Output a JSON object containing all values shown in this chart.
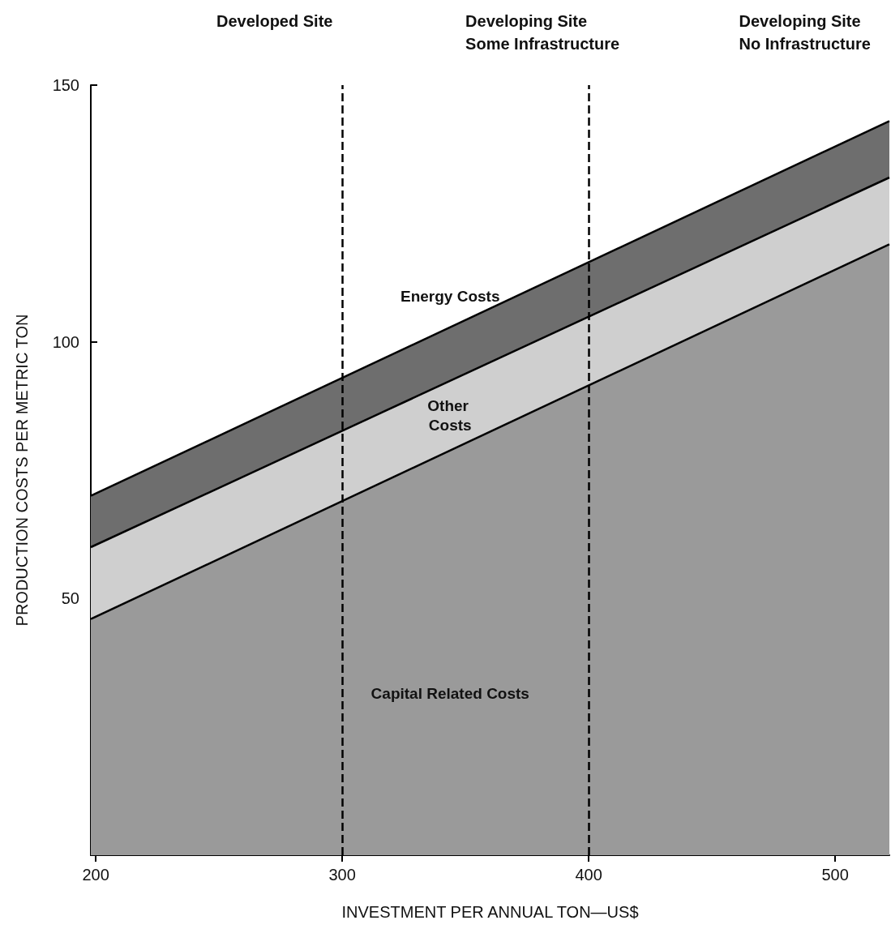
{
  "chart_data": {
    "type": "area",
    "stacked": true,
    "xlabel": "INVESTMENT PER ANNUAL TON—US$",
    "ylabel": "PRODUCTION COSTS PER METRIC TON",
    "x": [
      198,
      522
    ],
    "series": [
      {
        "name": "Capital Related Costs",
        "color": "#9a9a9a",
        "values": [
          46,
          119
        ]
      },
      {
        "name": "Other Costs",
        "color": "#cfcfcf",
        "values": [
          14,
          13
        ]
      },
      {
        "name": "Energy Costs",
        "color": "#6e6e6e",
        "values": [
          10,
          11
        ]
      }
    ],
    "xlim": [
      198,
      522
    ],
    "xticks": [
      200,
      300,
      400,
      500
    ],
    "ylim": [
      0,
      150
    ],
    "yticks": [
      50,
      100,
      150
    ],
    "ref_lines": [
      {
        "axis": "x",
        "value": 300,
        "line_style": "dashed"
      },
      {
        "axis": "x",
        "value": 400,
        "line_style": "dashed"
      }
    ],
    "annotations": [
      "Developed Site",
      "Developing Site\nSome Infrastructure",
      "Developing Site\nNo Infrastructure"
    ],
    "grid": false,
    "legend": false,
    "marker": "none"
  }
}
